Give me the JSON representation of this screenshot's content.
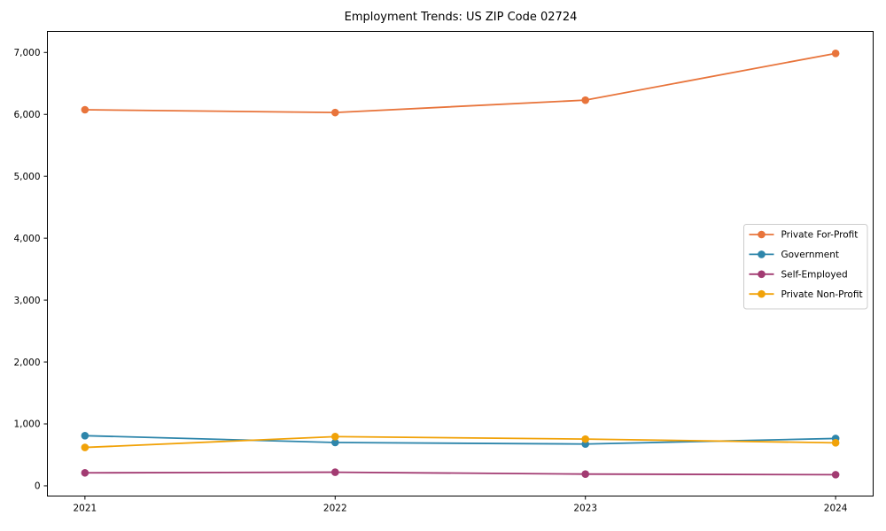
{
  "page": {
    "background_color": "#ffffff",
    "axis_color": "#000000"
  },
  "chart_data": {
    "type": "line",
    "title": "Employment Trends: US ZIP Code 02724",
    "xlabel": "",
    "ylabel": "",
    "x": [
      2021,
      2022,
      2023,
      2024
    ],
    "x_tick_labels": [
      "2021",
      "2022",
      "2023",
      "2024"
    ],
    "series": [
      {
        "name": "Private For-Profit",
        "color": "#E8743B",
        "values": [
          6075,
          6030,
          6230,
          6985
        ]
      },
      {
        "name": "Government",
        "color": "#2E86AB",
        "values": [
          810,
          700,
          675,
          765
        ]
      },
      {
        "name": "Self-Employed",
        "color": "#A23B72",
        "values": [
          210,
          220,
          190,
          180
        ]
      },
      {
        "name": "Private Non-Profit",
        "color": "#F1A208",
        "values": [
          620,
          795,
          755,
          695
        ]
      }
    ],
    "yticks": [
      0,
      1000,
      2000,
      3000,
      4000,
      5000,
      6000,
      7000
    ],
    "ytick_labels": [
      "0",
      "1,000",
      "2,000",
      "3,000",
      "4,000",
      "5,000",
      "6,000",
      "7,000"
    ],
    "xlim": [
      2020.85,
      2024.15
    ],
    "ylim": [
      -165,
      7340
    ],
    "grid": false,
    "marker": "circle",
    "legend": {
      "position": "center right",
      "border_color": "#cccccc",
      "background_color": "#ffffff"
    }
  }
}
